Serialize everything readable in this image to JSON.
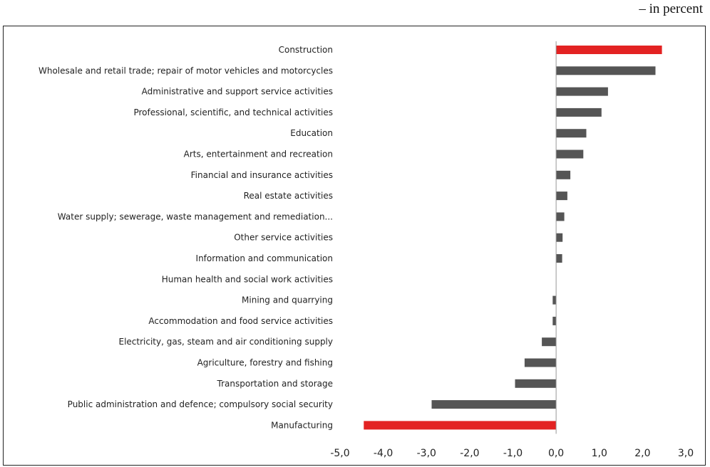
{
  "unit_note": "– in percent",
  "colors": {
    "highlight": "#e32222",
    "default": "#555555",
    "axis": "#999999"
  },
  "chart_data": {
    "type": "bar",
    "orientation": "horizontal",
    "categories": [
      "Construction",
      "Wholesale and retail trade; repair of motor vehicles and motorcycles",
      "Administrative and support service activities",
      "Professional, scientific, and technical activities",
      "Education",
      "Arts, entertainment and recreation",
      "Financial and insurance activities",
      "Real estate activities",
      "Water supply; sewerage, waste management and remediation...",
      "Other service activities",
      "Information and communication",
      "Human health and social work activities",
      "Mining and quarrying",
      "Accommodation and food service activities",
      "Electricity, gas, steam and air conditioning supply",
      "Agriculture, forestry and fishing",
      "Transportation and storage",
      "Public administration and defence; compulsory social security",
      "Manufacturing"
    ],
    "values": [
      2.45,
      2.3,
      1.2,
      1.05,
      0.7,
      0.63,
      0.33,
      0.26,
      0.19,
      0.15,
      0.14,
      0.0,
      -0.08,
      -0.08,
      -0.33,
      -0.73,
      -0.95,
      -2.88,
      -4.45
    ],
    "highlighted": [
      true,
      false,
      false,
      false,
      false,
      false,
      false,
      false,
      false,
      false,
      false,
      false,
      false,
      false,
      false,
      false,
      false,
      false,
      true
    ],
    "xlim": [
      -5.0,
      3.0
    ],
    "xticks": [
      "-5,0",
      "-4,0",
      "-3,0",
      "-2,0",
      "-1,0",
      "0,0",
      "1,0",
      "2,0",
      "3,0"
    ],
    "grid": false
  }
}
